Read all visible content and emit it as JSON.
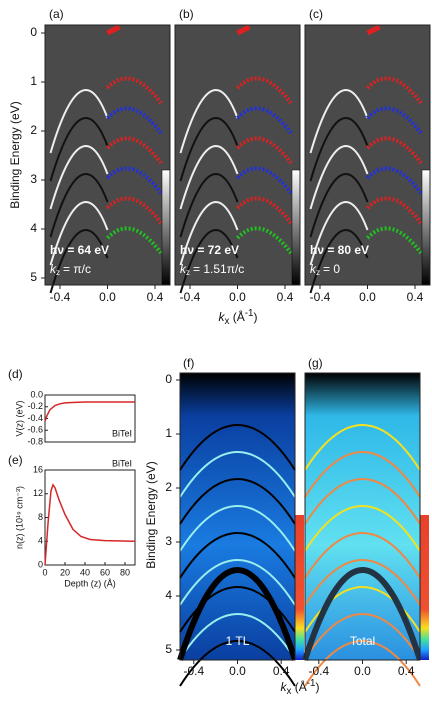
{
  "panels": [
    {
      "label": "(a)",
      "photon": "hν = 64 eV",
      "kz_symbol": "k",
      "kz_sub": "z",
      "kz_value": "= π/c",
      "xticks": [
        "-0.4",
        "0.0",
        "0.4"
      ]
    },
    {
      "label": "(b)",
      "photon": "hν = 72 eV",
      "kz_symbol": "k",
      "kz_sub": "z",
      "kz_value": "= 1.51π/c",
      "xticks": [
        "-0.4",
        "0.0",
        "0.4"
      ]
    },
    {
      "label": "(c)",
      "photon": "hν = 80 eV",
      "kz_symbol": "k",
      "kz_sub": "z",
      "kz_value": "= 0",
      "xticks": [
        "-0.4",
        "0.0",
        "0.4"
      ]
    }
  ],
  "top_axes": {
    "ylabel": "Binding Energy (eV)",
    "yticks": [
      "0",
      "1",
      "2",
      "3",
      "4",
      "5"
    ],
    "xlabel_k": "k",
    "xlabel_sub": "x",
    "xlabel_unit": " (Å",
    "xlabel_sup": "-1",
    "xlabel_close": ")"
  },
  "calc_panels": [
    {
      "label": "(f)",
      "caption": "1 TL",
      "xticks": [
        "-0.4",
        "0.0",
        "0.4"
      ]
    },
    {
      "label": "(g)",
      "caption": "Total",
      "xticks": [
        "-0.4",
        "0.0",
        "0.4"
      ]
    }
  ],
  "calc_axes": {
    "ylabel": "Binding Energy (eV)",
    "yticks": [
      "0",
      "1",
      "2",
      "3",
      "4",
      "5"
    ],
    "xlabel_k": "k",
    "xlabel_sub": "x",
    "xlabel_unit": " (Å",
    "xlabel_sup": "-1",
    "xlabel_close": ")"
  },
  "chart_data": [
    {
      "type": "line",
      "label": "(d)",
      "ylabel": "V(z) (eV)",
      "annotation": "BiTeI",
      "x": [
        0,
        2,
        5,
        10,
        15,
        20,
        30,
        40,
        60,
        90
      ],
      "series": [
        {
          "color": "#d62728",
          "values": [
            -0.45,
            -0.35,
            -0.25,
            -0.18,
            -0.15,
            -0.135,
            -0.125,
            -0.12,
            -0.12,
            -0.12
          ]
        }
      ],
      "xlim": [
        0,
        90
      ],
      "ylim": [
        -0.8,
        0
      ],
      "yticks": [
        {
          "value": 0,
          "label": "0.0"
        },
        -0.2,
        -0.4,
        -0.6,
        -0.8
      ]
    },
    {
      "type": "line",
      "label": "(e)",
      "ylabel": "n(z) (10¹⁹ cm⁻³)",
      "annotation": "BiTeI",
      "xlabel": "Depth (z) (Å)",
      "x": [
        0,
        3,
        6,
        8,
        10,
        14,
        20,
        28,
        36,
        45,
        60,
        90
      ],
      "series": [
        {
          "color": "#d62728",
          "values": [
            0,
            7,
            12.5,
            13.5,
            13,
            11,
            8.5,
            6,
            4.8,
            4.3,
            4.1,
            4
          ]
        }
      ],
      "xlim": [
        0,
        90
      ],
      "ylim": [
        0,
        16
      ],
      "yticks": [
        0,
        4,
        8,
        12,
        16
      ],
      "xticks": [
        0,
        20,
        40,
        60,
        80
      ]
    }
  ]
}
